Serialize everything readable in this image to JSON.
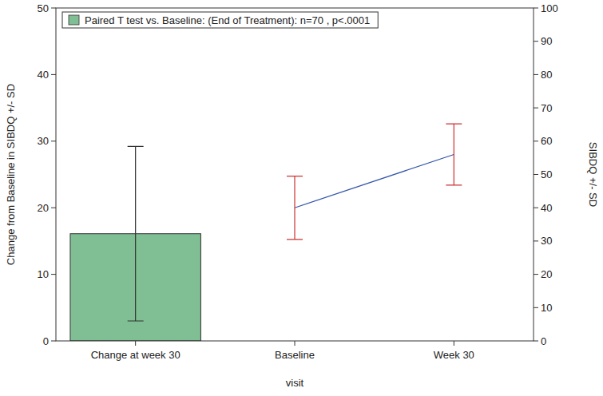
{
  "chart_data": {
    "type": "bar",
    "x_label": "visit",
    "y_label": "Change from Baseline in SIBDQ +/- SD",
    "y2_label": "SIBDQ +/- SD",
    "categories": [
      "Change at week 30",
      "Baseline",
      "Week 30"
    ],
    "ylim": [
      0,
      50
    ],
    "yticks": [
      0,
      10,
      20,
      30,
      40,
      50
    ],
    "y2lim": [
      0,
      100
    ],
    "y2ticks": [
      0,
      10,
      20,
      30,
      40,
      50,
      60,
      70,
      80,
      90,
      100
    ],
    "legend": "upper left",
    "grid": false,
    "series": [
      {
        "name": "Paired T test vs. Baseline: (End of Treatment): n=70 , p<.0001",
        "type": "bar",
        "color": "#7fbf93",
        "values": [
          16.1,
          null,
          null
        ],
        "errors": [
          13.1,
          null,
          null
        ]
      },
      {
        "type": "line",
        "axis": "y2",
        "color": "#3355aa",
        "marker": "none",
        "values": [
          null,
          40,
          56
        ],
        "errors": [
          null,
          9.5,
          9.2
        ]
      }
    ]
  }
}
